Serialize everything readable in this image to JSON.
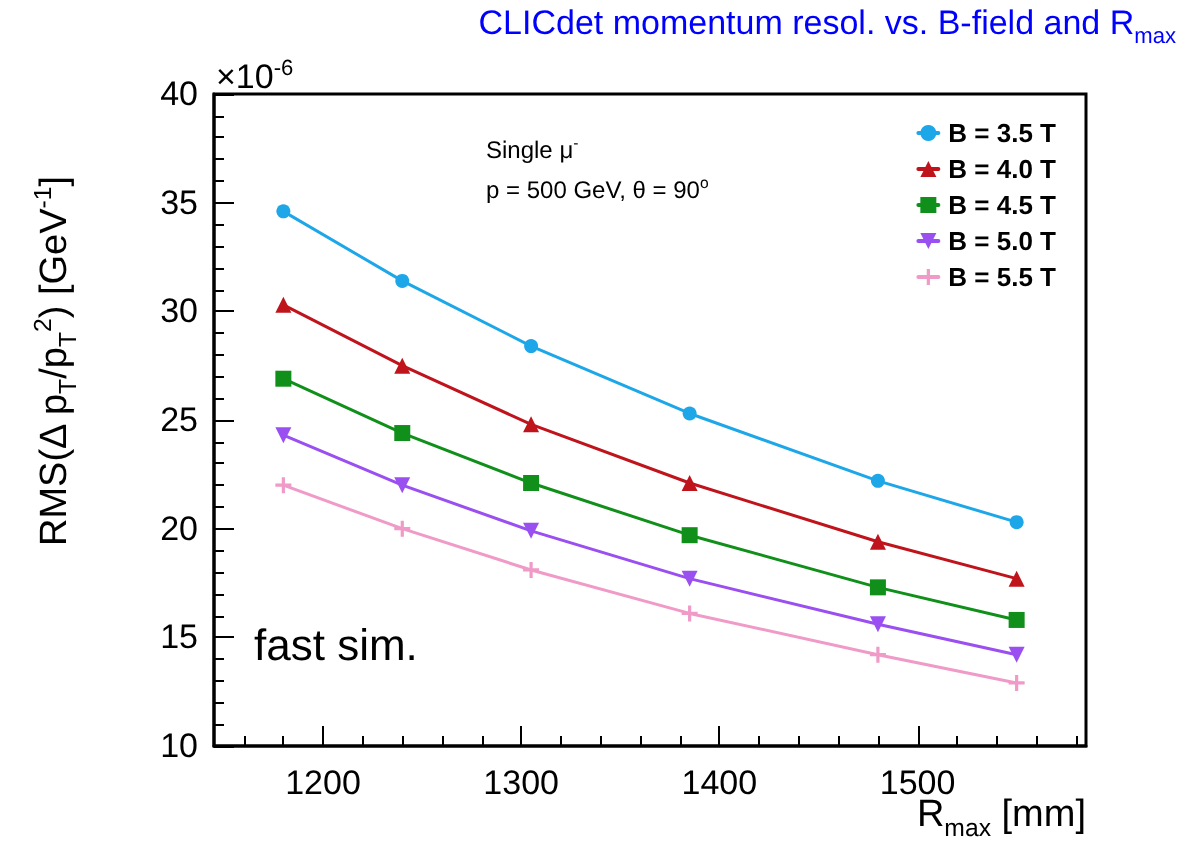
{
  "chart_data": {
    "type": "line",
    "title": "CLICdet momentum resol. vs. B-field and R$_{max}$",
    "xlabel": "R$_{max}$ [mm]",
    "ylabel": "RMS(Δ p$_{T}$/p$_{T}$$^{2}$) [GeV$^{-1}$]",
    "annotations": [
      "×10$^{-6}$",
      "Single μ$^{-}$",
      "p = 500 GeV, θ = 90$^{o}$",
      "fast sim."
    ],
    "x": [
      1180,
      1240,
      1305,
      1385,
      1480,
      1550
    ],
    "series": [
      {
        "name": "B = 3.5 T",
        "color": "#1ea7e8",
        "marker": "circle",
        "values": [
          34.6,
          31.4,
          28.4,
          25.3,
          22.2,
          20.3
        ]
      },
      {
        "name": "B = 4.0 T",
        "color": "#c0141c",
        "marker": "triangle",
        "values": [
          30.3,
          27.5,
          24.8,
          22.1,
          19.4,
          17.7
        ]
      },
      {
        "name": "B = 4.5 T",
        "color": "#10901a",
        "marker": "square",
        "values": [
          26.9,
          24.4,
          22.1,
          19.7,
          17.3,
          15.8
        ]
      },
      {
        "name": "B = 5.0 T",
        "color": "#9a4ff0",
        "marker": "triangle-down",
        "values": [
          24.3,
          22.0,
          19.9,
          17.7,
          15.6,
          14.2
        ]
      },
      {
        "name": "B = 5.5 T",
        "color": "#f09ac8",
        "marker": "cross",
        "values": [
          22.0,
          20.0,
          18.1,
          16.1,
          14.2,
          12.9
        ]
      }
    ],
    "xlim": [
      1145,
      1585
    ],
    "xticks": [
      1200,
      1300,
      1400,
      1500
    ],
    "ylim": [
      10,
      40
    ],
    "yticks": [
      10,
      15,
      20,
      25,
      30,
      35,
      40
    ],
    "grid": false,
    "legend": "top right",
    "line_style": "solid"
  }
}
